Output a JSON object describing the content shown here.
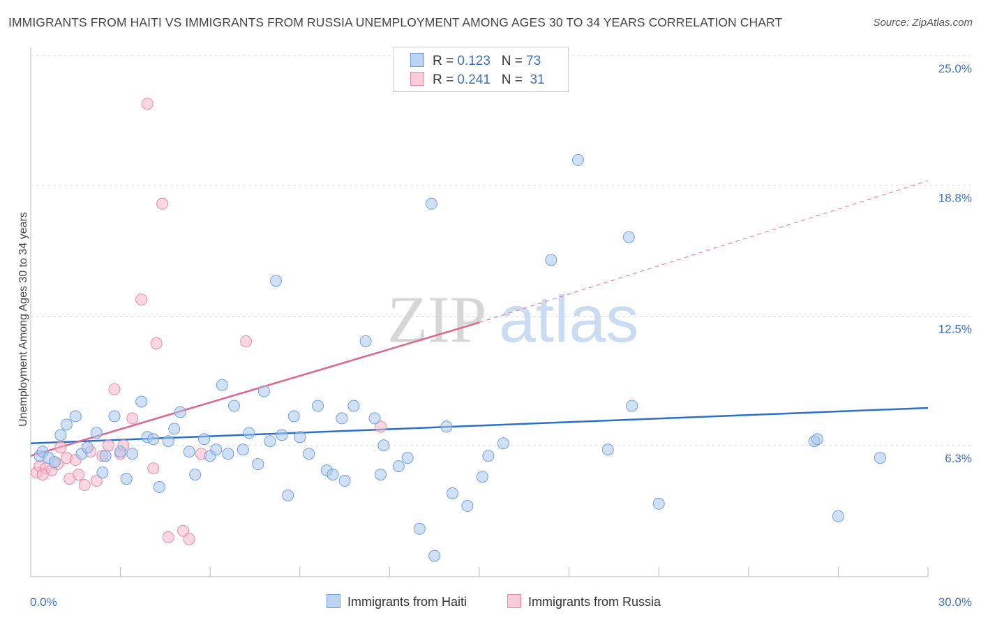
{
  "title": "IMMIGRANTS FROM HAITI VS IMMIGRANTS FROM RUSSIA UNEMPLOYMENT AMONG AGES 30 TO 34 YEARS CORRELATION CHART",
  "source": "Source: ZipAtlas.com",
  "watermark": {
    "zip": "ZIP",
    "atlas": "atlas"
  },
  "legend": {
    "haiti": {
      "r_label": "R =",
      "r_value": "0.123",
      "n_label": "N =",
      "n_value": "73"
    },
    "russia": {
      "r_label": "R =",
      "r_value": "0.241",
      "n_label": "N =",
      "n_value": "31"
    }
  },
  "colors": {
    "haiti_fill": "#a9c6ef",
    "haiti_stroke": "#6f9fdc",
    "haiti_line": "#2a6fcf",
    "russia_fill": "#f7b6c9",
    "russia_stroke": "#e889a6",
    "russia_line": "#e0648f"
  },
  "chart_data": {
    "type": "scatter",
    "title": "IMMIGRANTS FROM HAITI VS IMMIGRANTS FROM RUSSIA UNEMPLOYMENT AMONG AGES 30 TO 34 YEARS CORRELATION CHART",
    "xlabel": "",
    "ylabel": "Unemployment Among Ages 30 to 34 years",
    "xlim": [
      0,
      30
    ],
    "ylim": [
      0,
      25
    ],
    "x_ticks": [
      "0.0%",
      "30.0%"
    ],
    "y_ticks": [
      {
        "value": 6.3,
        "label": "6.3%"
      },
      {
        "value": 12.5,
        "label": "12.5%"
      },
      {
        "value": 18.8,
        "label": "18.8%"
      },
      {
        "value": 25.0,
        "label": "25.0%"
      }
    ],
    "series": [
      {
        "name": "Immigrants from Haiti",
        "r": 0.123,
        "n": 73,
        "trend": {
          "x": [
            0,
            30
          ],
          "y": [
            6.4,
            8.1
          ],
          "extrapolate_to": 30
        },
        "points": [
          [
            0.3,
            5.8
          ],
          [
            0.4,
            6.0
          ],
          [
            0.6,
            5.7
          ],
          [
            0.8,
            5.5
          ],
          [
            1.0,
            6.8
          ],
          [
            1.2,
            7.3
          ],
          [
            1.5,
            7.7
          ],
          [
            1.7,
            5.9
          ],
          [
            1.9,
            6.2
          ],
          [
            2.2,
            6.9
          ],
          [
            2.4,
            5.0
          ],
          [
            2.5,
            5.8
          ],
          [
            2.8,
            7.7
          ],
          [
            3.0,
            6.0
          ],
          [
            3.2,
            4.7
          ],
          [
            3.4,
            5.9
          ],
          [
            3.7,
            8.4
          ],
          [
            3.9,
            6.7
          ],
          [
            4.1,
            6.6
          ],
          [
            4.3,
            4.3
          ],
          [
            4.6,
            6.5
          ],
          [
            4.8,
            7.1
          ],
          [
            5.0,
            7.9
          ],
          [
            5.3,
            6.0
          ],
          [
            5.5,
            4.9
          ],
          [
            5.8,
            6.6
          ],
          [
            6.0,
            5.8
          ],
          [
            6.2,
            6.1
          ],
          [
            6.4,
            9.2
          ],
          [
            6.6,
            5.9
          ],
          [
            6.8,
            8.2
          ],
          [
            7.1,
            6.1
          ],
          [
            7.3,
            6.9
          ],
          [
            7.6,
            5.4
          ],
          [
            7.8,
            8.9
          ],
          [
            8.0,
            6.5
          ],
          [
            8.2,
            14.2
          ],
          [
            8.4,
            6.8
          ],
          [
            8.6,
            3.9
          ],
          [
            8.8,
            7.7
          ],
          [
            9.0,
            6.7
          ],
          [
            9.3,
            5.9
          ],
          [
            9.6,
            8.2
          ],
          [
            9.9,
            5.1
          ],
          [
            10.1,
            4.9
          ],
          [
            10.4,
            7.6
          ],
          [
            10.5,
            4.6
          ],
          [
            10.8,
            8.2
          ],
          [
            11.2,
            11.3
          ],
          [
            11.5,
            7.6
          ],
          [
            11.7,
            4.9
          ],
          [
            11.8,
            6.3
          ],
          [
            12.3,
            5.3
          ],
          [
            12.6,
            5.7
          ],
          [
            13.0,
            2.3
          ],
          [
            13.4,
            17.9
          ],
          [
            13.9,
            7.2
          ],
          [
            14.1,
            4.0
          ],
          [
            14.6,
            3.4
          ],
          [
            15.1,
            4.8
          ],
          [
            15.3,
            5.8
          ],
          [
            15.8,
            6.4
          ],
          [
            17.4,
            15.2
          ],
          [
            18.3,
            20.0
          ],
          [
            19.3,
            6.1
          ],
          [
            20.0,
            16.3
          ],
          [
            20.1,
            8.2
          ],
          [
            21.0,
            3.5
          ],
          [
            26.2,
            6.5
          ],
          [
            26.3,
            6.6
          ],
          [
            27.0,
            2.9
          ],
          [
            28.4,
            5.7
          ],
          [
            13.5,
            1.0
          ]
        ]
      },
      {
        "name": "Immigrants from Russia",
        "r": 0.241,
        "n": 31,
        "trend": {
          "x": [
            0,
            15
          ],
          "y": [
            5.8,
            12.2
          ],
          "extrapolate_to": 30,
          "extrapolated_y": 19.0
        },
        "points": [
          [
            0.2,
            5.0
          ],
          [
            0.3,
            5.3
          ],
          [
            0.5,
            5.2
          ],
          [
            0.7,
            5.1
          ],
          [
            0.9,
            5.4
          ],
          [
            1.0,
            6.2
          ],
          [
            1.2,
            5.7
          ],
          [
            1.3,
            4.7
          ],
          [
            1.5,
            5.6
          ],
          [
            1.6,
            4.9
          ],
          [
            1.8,
            4.4
          ],
          [
            2.0,
            6.0
          ],
          [
            2.2,
            4.6
          ],
          [
            2.4,
            5.8
          ],
          [
            2.6,
            6.3
          ],
          [
            2.8,
            9.0
          ],
          [
            3.0,
            5.9
          ],
          [
            3.1,
            6.3
          ],
          [
            3.4,
            7.6
          ],
          [
            3.7,
            13.3
          ],
          [
            3.9,
            22.7
          ],
          [
            4.1,
            5.2
          ],
          [
            4.2,
            11.2
          ],
          [
            4.4,
            17.9
          ],
          [
            4.6,
            1.9
          ],
          [
            5.1,
            2.2
          ],
          [
            5.3,
            1.8
          ],
          [
            5.7,
            5.9
          ],
          [
            7.2,
            11.3
          ],
          [
            11.7,
            7.2
          ],
          [
            0.4,
            4.9
          ]
        ]
      }
    ]
  },
  "bottom_legend": {
    "haiti": "Immigrants from Haiti",
    "russia": "Immigrants from Russia"
  }
}
